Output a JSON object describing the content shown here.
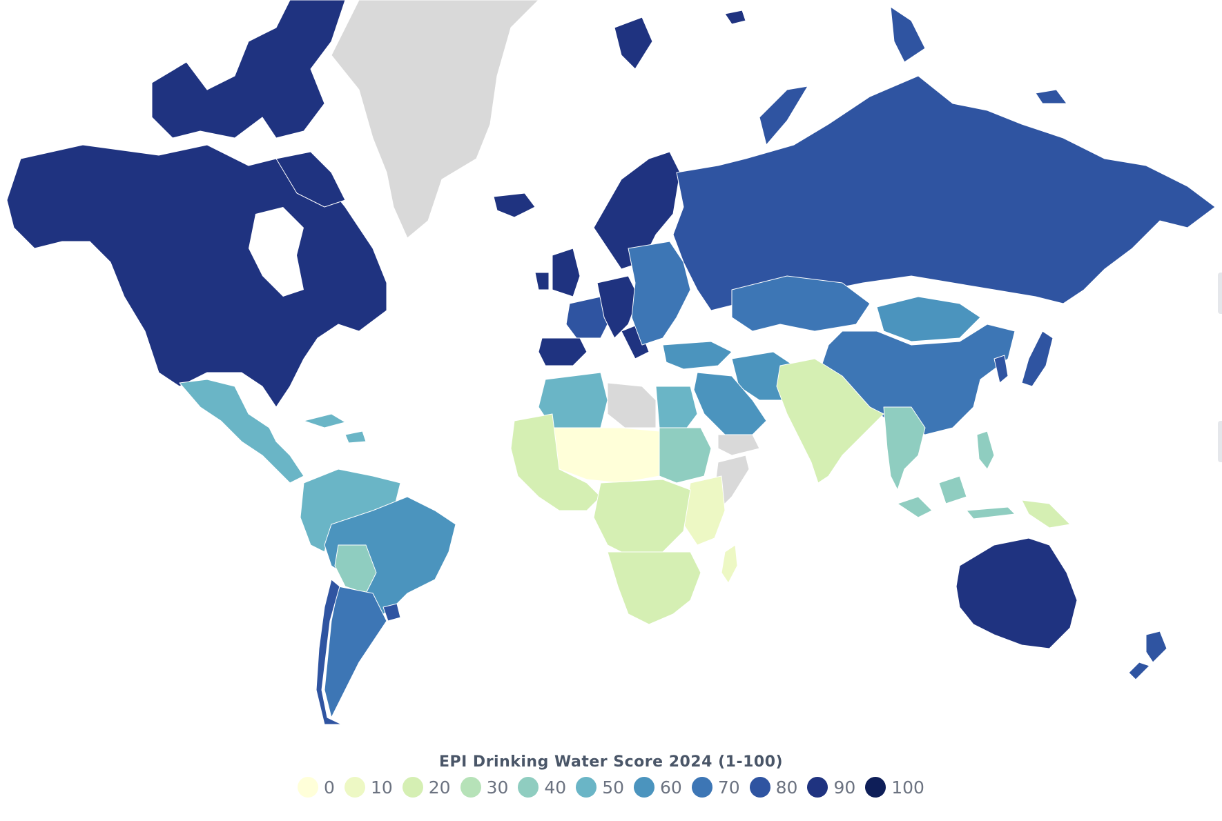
{
  "legend": {
    "title": "EPI Drinking Water Score 2024 (1-100)",
    "stops": [
      {
        "label": "0",
        "value": 0,
        "color": "#ffffd9"
      },
      {
        "label": "10",
        "value": 10,
        "color": "#edf8c4"
      },
      {
        "label": "20",
        "value": 20,
        "color": "#d5efb3"
      },
      {
        "label": "30",
        "value": 30,
        "color": "#b6e2b8"
      },
      {
        "label": "40",
        "value": 40,
        "color": "#8fcdc0"
      },
      {
        "label": "50",
        "value": 50,
        "color": "#6ab5c6"
      },
      {
        "label": "60",
        "value": 60,
        "color": "#4b94be"
      },
      {
        "label": "70",
        "value": 70,
        "color": "#3d76b5"
      },
      {
        "label": "80",
        "value": 80,
        "color": "#2f54a1"
      },
      {
        "label": "90",
        "value": 90,
        "color": "#1f3380"
      },
      {
        "label": "100",
        "value": 100,
        "color": "#0e1e58"
      }
    ]
  },
  "no_data_color": "#d9d9d9",
  "regions": [
    {
      "name": "north-america",
      "score": 97
    },
    {
      "name": "greenland",
      "score": null
    },
    {
      "name": "arctic-islands",
      "score": 97
    },
    {
      "name": "mexico-central-america",
      "score": 58
    },
    {
      "name": "caribbean",
      "score": 55
    },
    {
      "name": "northern-south-america",
      "score": 56
    },
    {
      "name": "brazil",
      "score": 63
    },
    {
      "name": "bolivia-paraguay",
      "score": 48
    },
    {
      "name": "argentina",
      "score": 70
    },
    {
      "name": "chile",
      "score": 82
    },
    {
      "name": "uruguay",
      "score": 80
    },
    {
      "name": "nordic",
      "score": 97
    },
    {
      "name": "iceland",
      "score": 97
    },
    {
      "name": "uk-ireland",
      "score": 92
    },
    {
      "name": "western-europe",
      "score": 95
    },
    {
      "name": "iberia",
      "score": 90
    },
    {
      "name": "france",
      "score": 86
    },
    {
      "name": "eastern-europe",
      "score": 78
    },
    {
      "name": "russia",
      "score": 80
    },
    {
      "name": "svalbard",
      "score": 97
    },
    {
      "name": "turkey-middle-east",
      "score": 60
    },
    {
      "name": "central-asia",
      "score": 78
    },
    {
      "name": "mongolia",
      "score": 60
    },
    {
      "name": "china",
      "score": 75
    },
    {
      "name": "korea",
      "score": 85
    },
    {
      "name": "japan",
      "score": 88
    },
    {
      "name": "india-south-asia",
      "score": 28
    },
    {
      "name": "southeast-asia",
      "score": 42
    },
    {
      "name": "indonesia",
      "score": 40
    },
    {
      "name": "philippines",
      "score": 45
    },
    {
      "name": "png",
      "score": 25
    },
    {
      "name": "australia",
      "score": 90
    },
    {
      "name": "new-zealand",
      "score": 88
    },
    {
      "name": "north-africa",
      "score": 58
    },
    {
      "name": "libya",
      "score": null
    },
    {
      "name": "egypt",
      "score": 58
    },
    {
      "name": "sudan",
      "score": 40
    },
    {
      "name": "sahel",
      "score": 8
    },
    {
      "name": "west-africa",
      "score": 20
    },
    {
      "name": "central-africa",
      "score": 25
    },
    {
      "name": "east-africa",
      "score": 18
    },
    {
      "name": "somalia",
      "score": null
    },
    {
      "name": "southern-africa",
      "score": 22
    },
    {
      "name": "madagascar",
      "score": 18
    },
    {
      "name": "arabia",
      "score": 62
    },
    {
      "name": "yemen-oman",
      "score": null
    }
  ]
}
